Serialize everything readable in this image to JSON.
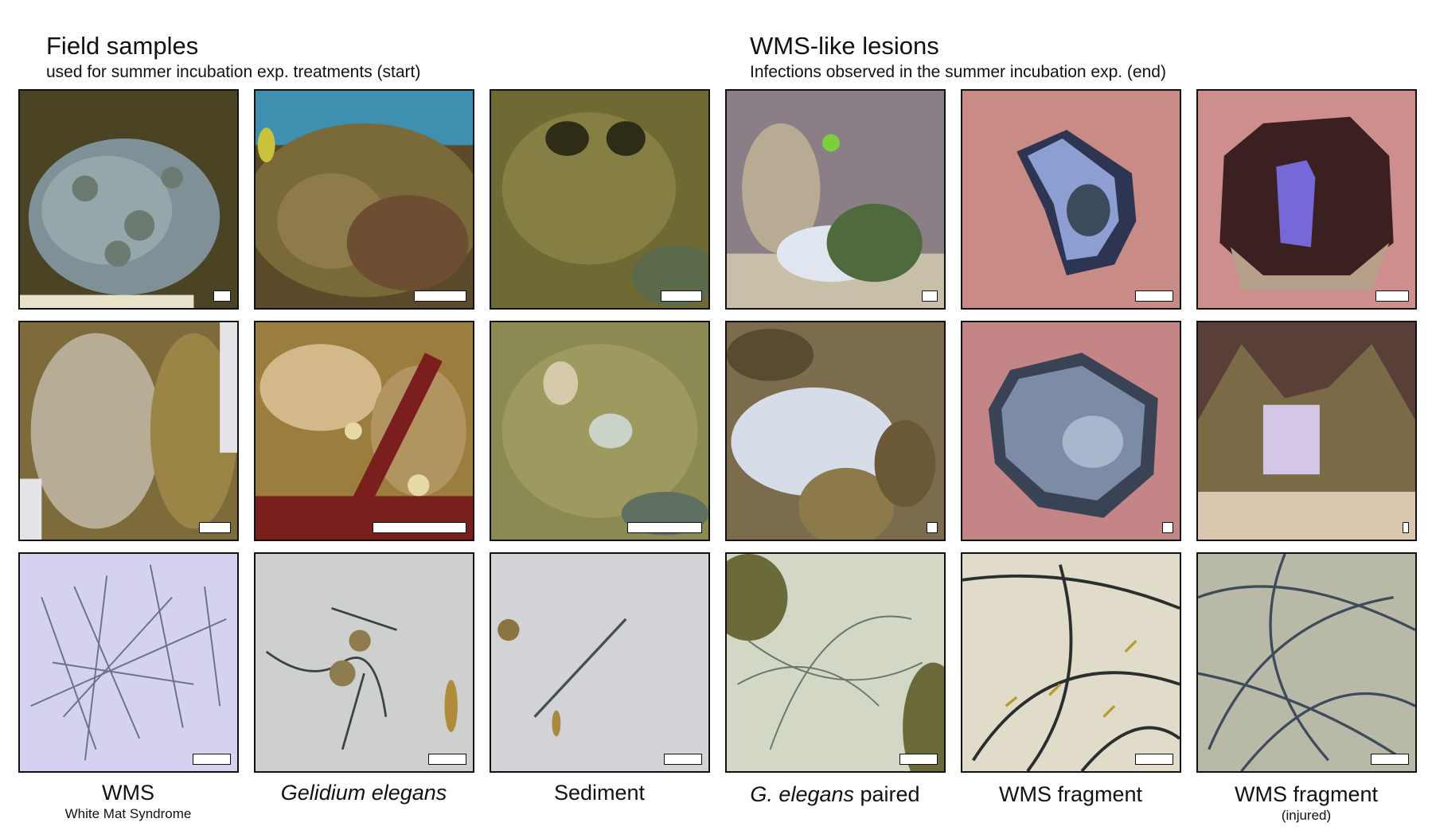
{
  "left_heading": {
    "title": "Field samples",
    "subtitle": "used for summer incubation exp. treatments (start)"
  },
  "right_heading": {
    "title": "WMS-like lesions",
    "subtitle": "Infections observed in the summer incubation exp. (end)"
  },
  "columns": [
    {
      "label": "WMS",
      "sublabel": "White Mat Syndrome"
    },
    {
      "label": "Gelidium elegans"
    },
    {
      "label": "Sediment"
    },
    {
      "label_italic": "G. elegans",
      "label_rest": " paired"
    },
    {
      "label": "WMS fragment"
    },
    {
      "label": "WMS fragment",
      "sublabel": "(injured)"
    }
  ]
}
